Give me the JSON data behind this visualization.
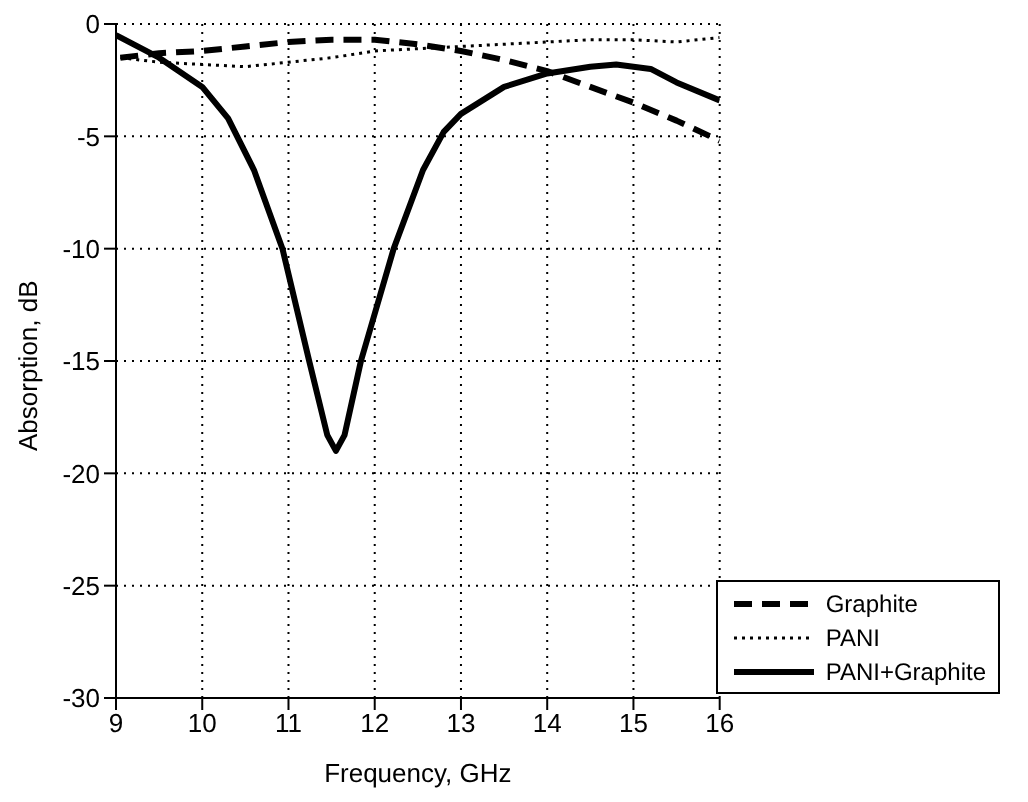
{
  "chart_data": {
    "type": "line",
    "xlabel": "Frequency, GHz",
    "ylabel": "Absorption, dB",
    "xlim": [
      9,
      16
    ],
    "xticks": [
      9,
      10,
      11,
      12,
      13,
      14,
      15,
      16
    ],
    "ylim": [
      -30,
      0
    ],
    "yticks": [
      -30,
      -25,
      -20,
      -15,
      -10,
      -5,
      0
    ],
    "grid": true,
    "legend": "bottom right",
    "marker": "none",
    "series": [
      {
        "name": "Graphite",
        "color": "#000000",
        "line_style": "dashed",
        "x": [
          9.05,
          9.5,
          10,
          10.5,
          11,
          11.5,
          12,
          12.5,
          13,
          13.5,
          14,
          14.5,
          15,
          15.5,
          16
        ],
        "values": [
          -1.5,
          -1.3,
          -1.2,
          -1,
          -0.8,
          -0.7,
          -0.7,
          -0.9,
          -1.2,
          -1.6,
          -2.1,
          -2.8,
          -3.5,
          -4.3,
          -5.2
        ]
      },
      {
        "name": "PANI",
        "color": "#000000",
        "line_style": "dotted",
        "x": [
          9.05,
          9.5,
          10,
          10.5,
          11,
          11.5,
          12,
          12.5,
          13,
          13.5,
          14,
          14.5,
          15,
          15.5,
          16
        ],
        "values": [
          -1.5,
          -1.7,
          -1.8,
          -1.9,
          -1.7,
          -1.5,
          -1.2,
          -1.1,
          -1,
          -0.9,
          -0.8,
          -0.7,
          -0.7,
          -0.8,
          -0.6
        ]
      },
      {
        "name": "PANI+Graphite",
        "color": "#000000",
        "line_style": "solid",
        "x": [
          9,
          9.5,
          10,
          10.3,
          10.6,
          10.93,
          11.24,
          11.45,
          11.55,
          11.65,
          11.84,
          12.22,
          12.56,
          12.8,
          13,
          13.5,
          14,
          14.5,
          14.8,
          15.2,
          15.5,
          16
        ],
        "values": [
          -0.5,
          -1.5,
          -2.8,
          -4.2,
          -6.5,
          -10,
          -15,
          -18.3,
          -19,
          -18.3,
          -15,
          -10,
          -6.5,
          -4.8,
          -4,
          -2.8,
          -2.2,
          -1.9,
          -1.8,
          -2,
          -2.6,
          -3.4
        ]
      }
    ]
  }
}
